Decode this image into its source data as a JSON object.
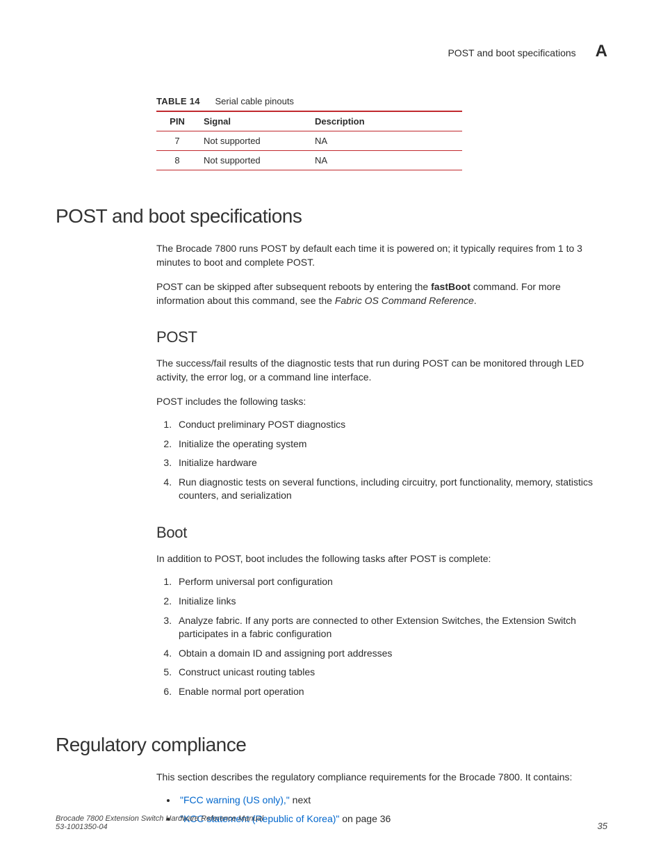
{
  "header": {
    "running_title": "POST and boot specifications",
    "appendix_letter": "A"
  },
  "table14": {
    "label": "TABLE 14",
    "title": "Serial cable pinouts",
    "columns": [
      "PIN",
      "Signal",
      "Description"
    ],
    "rows": [
      [
        "7",
        "Not supported",
        "NA"
      ],
      [
        "8",
        "Not supported",
        "NA"
      ]
    ],
    "border_color": "#c1282d"
  },
  "section_post_boot": {
    "heading": "POST and boot specifications",
    "para1_a": "The Brocade 7800 runs POST by default each time it is powered on; it typically requires from 1 to 3 minutes to boot and complete POST.",
    "para2_a": "POST can be skipped after subsequent reboots by entering the ",
    "para2_cmd": "fastBoot",
    "para2_b": " command. For more information about this command, see the ",
    "para2_ref": "Fabric OS Command Reference",
    "para2_c": "."
  },
  "subsection_post": {
    "heading": "POST",
    "para1": "The success/fail results of the diagnostic tests that run during POST can be monitored through LED activity, the error log, or a command line interface.",
    "para2": "POST includes the following tasks:",
    "tasks": [
      "Conduct preliminary POST diagnostics",
      "Initialize the operating system",
      "Initialize hardware",
      "Run diagnostic tests on several functions, including circuitry, port functionality, memory, statistics counters, and serialization"
    ]
  },
  "subsection_boot": {
    "heading": "Boot",
    "para1": "In addition to POST, boot includes the following tasks after POST is complete:",
    "tasks": [
      "Perform universal port configuration",
      "Initialize links",
      "Analyze fabric. If any ports are connected to other Extension Switches, the Extension Switch participates in a fabric configuration",
      "Obtain a domain ID and assigning port addresses",
      "Construct unicast routing tables",
      "Enable normal port operation"
    ]
  },
  "section_regulatory": {
    "heading": "Regulatory compliance",
    "para1": "This section describes the regulatory compliance requirements for the Brocade 7800. It contains:",
    "bullets": [
      {
        "link": "\"FCC warning (US only),\"",
        "after": " next"
      },
      {
        "link": "\"KCC statement (Republic of Korea)\"",
        "after": " on page 36"
      }
    ]
  },
  "footer": {
    "line1": "Brocade 7800 Extension Switch Hardware Reference Manual",
    "line2": "53-1001350-04",
    "page": "35"
  }
}
